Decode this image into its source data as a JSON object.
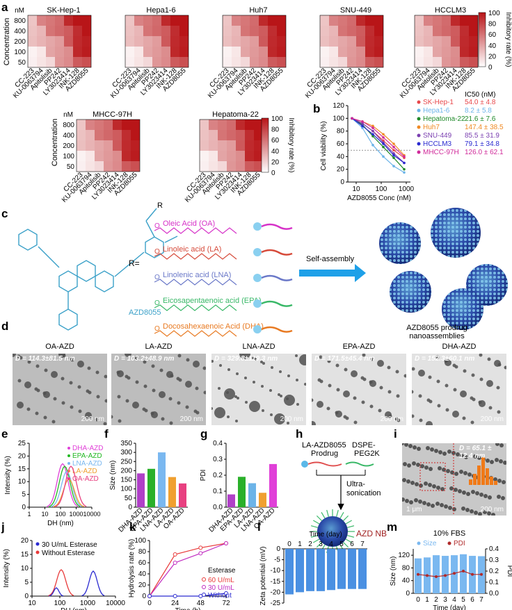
{
  "panels": {
    "a": "a",
    "b": "b",
    "c": "c",
    "d": "d",
    "e": "e",
    "f": "f",
    "g": "g",
    "h": "h",
    "i": "i",
    "j": "j",
    "k": "k",
    "l": "l",
    "m": "m"
  },
  "heatmaps": {
    "unit": "nM",
    "ylabel": "Concentration",
    "concentrations": [
      "800",
      "400",
      "200",
      "100",
      "50"
    ],
    "drugs": [
      "CC-223",
      "KU-0063794",
      "Apitolisib",
      "PP242",
      "LY3023414",
      "INK-128",
      "AZD8055"
    ],
    "colorbar_label": "Inhibitory rate (%)",
    "colorbar_ticks": [
      "100",
      "80",
      "60",
      "40",
      "20",
      "0"
    ],
    "cells": [
      "SK-Hep-1",
      "Hepa1-6",
      "Huh7",
      "SNU-449",
      "HCCLM3",
      "MHCC-97H",
      "Hepatoma-22"
    ]
  },
  "panel_b": {
    "ylabel": "Cell viability (%)",
    "xlabel": "AZD8055 Conc (nM)",
    "yticks": [
      "0",
      "20",
      "40",
      "60",
      "80",
      "100",
      "120"
    ],
    "xticks": [
      "10",
      "100",
      "1000"
    ],
    "ic50_header": "IC50 (nM)",
    "legend": [
      {
        "name": "SK-Hep-1",
        "ic50": "54.0 ± 4.8",
        "color": "#e8474a"
      },
      {
        "name": "Hepa1-6",
        "ic50": "8.2 ± 5.8",
        "color": "#6cb4e8"
      },
      {
        "name": "Hepatoma-22",
        "ic50": "21.6 ± 7.6",
        "color": "#1f8a2a"
      },
      {
        "name": "Huh7",
        "ic50": "147.4 ± 38.5",
        "color": "#f08a24"
      },
      {
        "name": "SNU-449",
        "ic50": "85.5 ± 31.9",
        "color": "#7a3fb0"
      },
      {
        "name": "HCCLM3",
        "ic50": "79.1 ± 34.8",
        "color": "#2a2ad0"
      },
      {
        "name": "MHCC-97H",
        "ic50": "126.0 ± 62.1",
        "color": "#d02a9a"
      }
    ]
  },
  "panel_c": {
    "drug_name": "AZD8055",
    "r_eq": "R=",
    "R": "R",
    "acids": [
      {
        "name": "Oleic Acid (OA)",
        "color": "#d632c8"
      },
      {
        "name": "Linoleic acid (LA)",
        "color": "#d64a3a"
      },
      {
        "name": "Linolenic acid (LNA)",
        "color": "#6a78c8"
      },
      {
        "name": "Eicosapentaenoic acid (EPA)",
        "color": "#3ab868"
      },
      {
        "name": "Docosahexaenoic Acid (DHA)",
        "color": "#e87a22"
      }
    ],
    "arrow_label": "Self-assembly",
    "nano_label_1": "AZD8055 prodrug",
    "nano_label_2": "nanoassemblies"
  },
  "panel_d": [
    {
      "title": "OA-AZD",
      "d": "D = 114.3±81.5 nm",
      "scale": "200 nm"
    },
    {
      "title": "LA-AZD",
      "d": "D = 103.2±48.9 nm",
      "scale": "200 nm"
    },
    {
      "title": "LNA-AZD",
      "d": "D = 329.8±119.3 nm",
      "scale": "200 nm"
    },
    {
      "title": "EPA-AZD",
      "d": "D = 171.5±45.4 nm",
      "scale": "200 nm"
    },
    {
      "title": "DHA-AZD",
      "d": "D = 152.3±60.1 nm",
      "scale": "200 nm"
    }
  ],
  "panel_e": {
    "ylabel": "Intensity (%)",
    "xlabel": "DH (nm)",
    "yticks": [
      "0",
      "5",
      "10",
      "15",
      "20",
      "25"
    ],
    "xticks": [
      "1",
      "10",
      "100",
      "1000",
      "10000"
    ],
    "legend": [
      {
        "name": "DHA-AZD",
        "color": "#e040d8"
      },
      {
        "name": "EPA-AZD",
        "color": "#22b822"
      },
      {
        "name": "LNA-AZD",
        "color": "#7ab8f0"
      },
      {
        "name": "LA-AZD",
        "color": "#f0a030"
      },
      {
        "name": "OA-AZD",
        "color": "#e84080"
      }
    ]
  },
  "panel_f": {
    "ylabel": "Size (nm)",
    "yticks": [
      "0",
      "50",
      "100",
      "150",
      "200",
      "250",
      "300",
      "350"
    ],
    "chart_data": {
      "type": "bar",
      "categories": [
        "DHA-AZD",
        "EPA-AZD",
        "LNA-AZD",
        "LA-AZD",
        "OA-AZD"
      ],
      "values": [
        185,
        210,
        300,
        165,
        130
      ],
      "colors": [
        "#b040c8",
        "#2ab02a",
        "#7ab8f0",
        "#f0a030",
        "#e84080"
      ]
    }
  },
  "panel_g": {
    "ylabel": "PDI",
    "yticks": [
      "0.0",
      "0.1",
      "0.2",
      "0.3",
      "0.4"
    ],
    "chart_data": {
      "type": "bar",
      "categories": [
        "DHA-AZD",
        "EPA-AZD",
        "LA-AZD",
        "LNA-AZD",
        "OA-AZD"
      ],
      "values": [
        0.08,
        0.19,
        0.15,
        0.09,
        0.27
      ],
      "colors": [
        "#b040c8",
        "#2ab02a",
        "#6cb4e8",
        "#f0a030",
        "#e040d8"
      ]
    }
  },
  "panel_h": {
    "prodrug": "LA-AZD8055 Prodrug",
    "dspe": "DSPE-PEG2K",
    "process": "Ultra-sonication",
    "product": "AZD NB"
  },
  "panel_i": {
    "d": "D = 65.1 ± 12.4 nm",
    "scale1": "1 μm",
    "scale2": "200 nm",
    "hist_xlabel": "D (nm)",
    "hist_ylabel": "Intensity (%)"
  },
  "panel_j": {
    "ylabel": "Intensity (%)",
    "xlabel": "DH (nm)",
    "yticks": [
      "0",
      "5",
      "10",
      "15",
      "20"
    ],
    "xticks": [
      "10",
      "100",
      "1000",
      "10000"
    ],
    "legend": [
      {
        "name": "30 U/mL Esterase",
        "color": "#2a2ad0"
      },
      {
        "name": "Without Esterase",
        "color": "#e83a3a"
      }
    ]
  },
  "panel_k": {
    "ylabel": "Hydrolysis rate (%)",
    "xlabel": "Time (h)",
    "yticks": [
      "0",
      "20",
      "40",
      "60",
      "80",
      "100"
    ],
    "xticks": [
      "0",
      "24",
      "48",
      "72"
    ],
    "legend_title": "Esterase",
    "chart_data": {
      "type": "line",
      "x": [
        0,
        24,
        48,
        72
      ],
      "series": [
        {
          "name": "60 U/mL",
          "values": [
            0,
            75,
            87,
            95
          ],
          "color": "#e83a3a"
        },
        {
          "name": "30 U/mL",
          "values": [
            0,
            60,
            77,
            95
          ],
          "color": "#c02ac0"
        },
        {
          "name": "Without",
          "values": [
            0,
            0,
            0,
            5
          ],
          "color": "#2a2ad0"
        }
      ]
    }
  },
  "panel_l": {
    "ylabel": "Zeta potential (mV)",
    "xlabel": "Time (day)",
    "xticks": [
      "0",
      "1",
      "2",
      "3",
      "4",
      "5",
      "6",
      "7"
    ],
    "yticks": [
      "0",
      "-5",
      "-10",
      "-15",
      "-20",
      "-25"
    ],
    "chart_data": {
      "type": "bar",
      "categories": [
        "0",
        "1",
        "2",
        "3",
        "4",
        "5",
        "6",
        "7"
      ],
      "values": [
        -21,
        -20,
        -19.5,
        -19.5,
        -19,
        -18.5,
        -18.5,
        -18.5
      ]
    }
  },
  "panel_m": {
    "title": "10% FBS",
    "ylabel": "Size (nm)",
    "ylabel2": "PDI",
    "xlabel": "Time (day)",
    "xticks": [
      "0",
      "1",
      "2",
      "3",
      "4",
      "5",
      "6",
      "7"
    ],
    "yticks": [
      "0",
      "20",
      "40",
      "60",
      "80",
      "100",
      "120",
      "140"
    ],
    "y2ticks": [
      "0.0",
      "0.1",
      "0.2",
      "0.3",
      "0.4"
    ],
    "legend": [
      {
        "name": "Size",
        "color": "#7ab8f0"
      },
      {
        "name": "PDI",
        "color": "#b02a2a"
      }
    ],
    "chart_data": {
      "type": "bar",
      "categories": [
        "0",
        "1",
        "2",
        "3",
        "4",
        "5",
        "6",
        "7"
      ],
      "series": [
        {
          "name": "Size",
          "values": [
            110,
            113,
            120,
            118,
            120,
            123,
            118,
            117
          ]
        },
        {
          "name": "PDI",
          "values": [
            0.17,
            0.16,
            0.15,
            0.16,
            0.18,
            0.2,
            0.17,
            0.17
          ]
        }
      ]
    }
  }
}
